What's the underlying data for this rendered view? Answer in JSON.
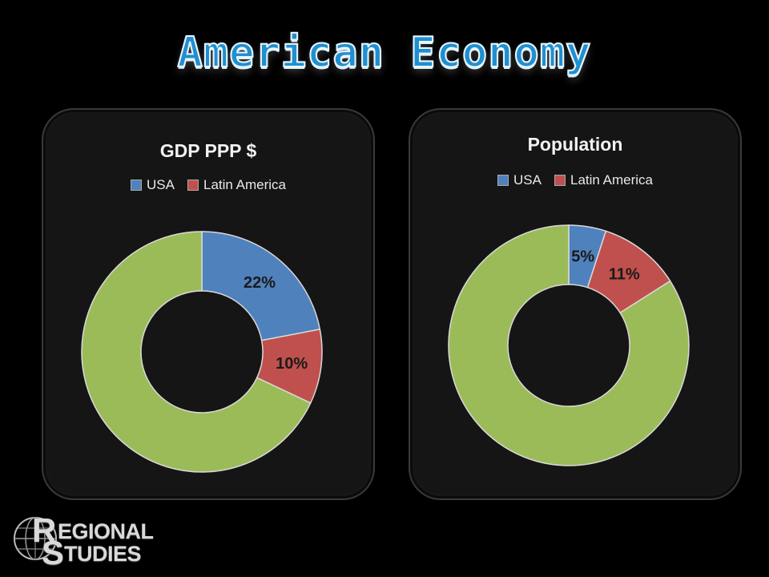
{
  "title": "American Economy",
  "colors": {
    "usa": "#4f81bd",
    "latin_america": "#c0504d",
    "rest": "#9bbb59"
  },
  "charts": [
    {
      "title": "GDP PPP $",
      "legend": [
        "USA",
        "Latin America"
      ]
    },
    {
      "title": "Population",
      "legend": [
        "USA",
        "Latin America"
      ]
    }
  ],
  "chart_data": [
    {
      "type": "pie",
      "title": "GDP PPP $",
      "categories": [
        "USA",
        "Latin America",
        ""
      ],
      "values": [
        22,
        10,
        68
      ],
      "data_labels": [
        "22%",
        "10%",
        ""
      ]
    },
    {
      "type": "pie",
      "title": "Population",
      "categories": [
        "USA",
        "Latin America",
        ""
      ],
      "values": [
        5,
        11,
        84
      ],
      "data_labels": [
        "5%",
        "11%",
        ""
      ]
    }
  ],
  "logo": {
    "line1": "EGIONAL",
    "line2": "TUDIES",
    "initial1": "R",
    "initial2": "S"
  }
}
